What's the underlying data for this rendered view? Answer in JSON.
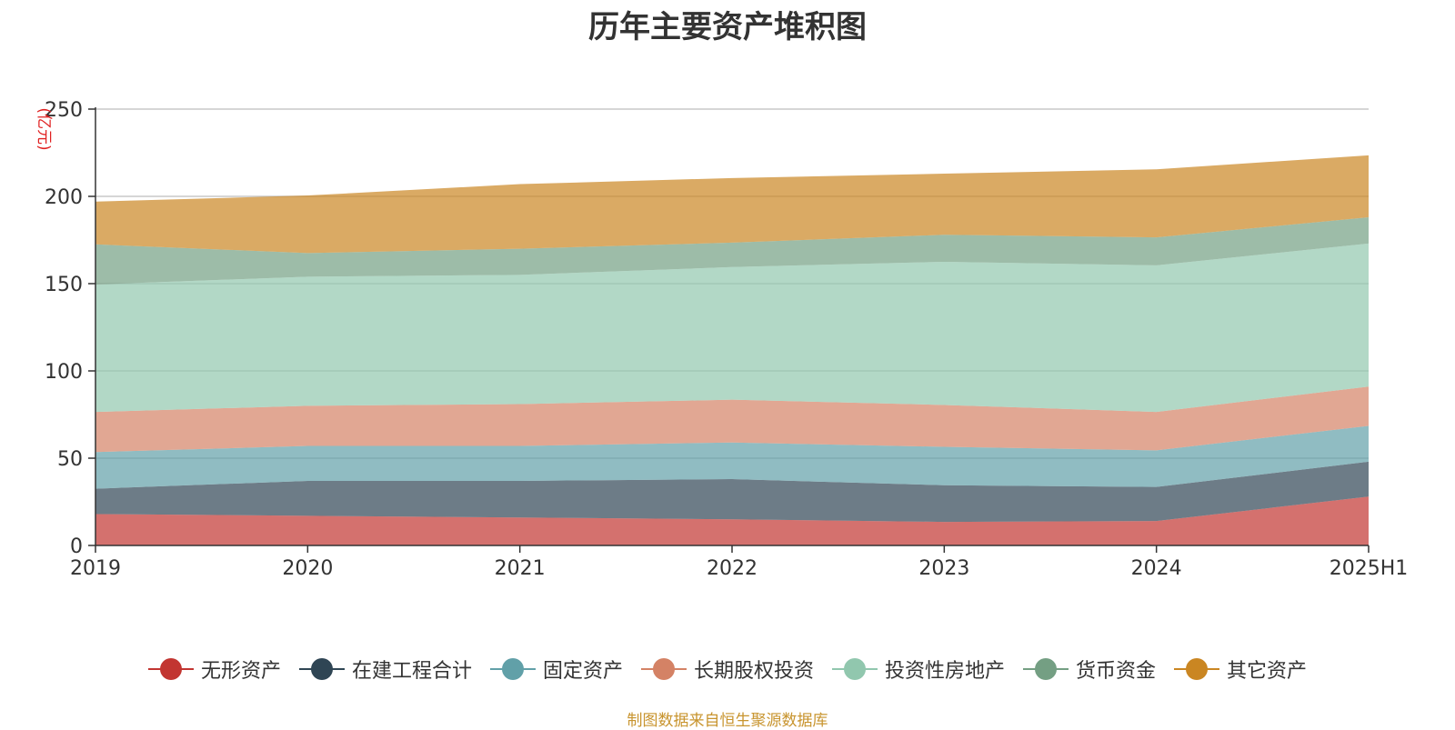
{
  "chart_data": {
    "type": "area",
    "stacked": true,
    "title": "历年主要资产堆积图",
    "unit_label": "(亿元)",
    "categories": [
      "2019",
      "2020",
      "2021",
      "2022",
      "2023",
      "2024",
      "2025H1"
    ],
    "ylim": [
      0,
      250
    ],
    "yticks": [
      "0",
      "50",
      "100",
      "150",
      "200",
      "250"
    ],
    "grid": true,
    "legend_position": "bottom",
    "series": [
      {
        "name": "无形资产",
        "color": "#c23531",
        "values": [
          18,
          17,
          16,
          15,
          13.5,
          14,
          28
        ]
      },
      {
        "name": "在建工程合计",
        "color": "#2f4554",
        "values": [
          14.5,
          20,
          21,
          23,
          21,
          19.5,
          20
        ]
      },
      {
        "name": "固定资产",
        "color": "#61a0a8",
        "values": [
          21,
          20,
          20,
          21,
          22,
          21,
          20.5
        ]
      },
      {
        "name": "长期股权投资",
        "color": "#d48265",
        "values": [
          23,
          23,
          24,
          24.5,
          24,
          22,
          22.5
        ]
      },
      {
        "name": "投资性房地产",
        "color": "#91c7ae",
        "values": [
          73,
          74,
          74,
          76,
          82,
          84,
          82
        ]
      },
      {
        "name": "货币资金",
        "color": "#749f83",
        "values": [
          23,
          13.5,
          15,
          14,
          15.5,
          16,
          15
        ]
      },
      {
        "name": "其它资产",
        "color": "#ca8622",
        "values": [
          24.5,
          33,
          37,
          37,
          35,
          39,
          35.5
        ]
      }
    ]
  },
  "source_note": "制图数据来自恒生聚源数据库"
}
